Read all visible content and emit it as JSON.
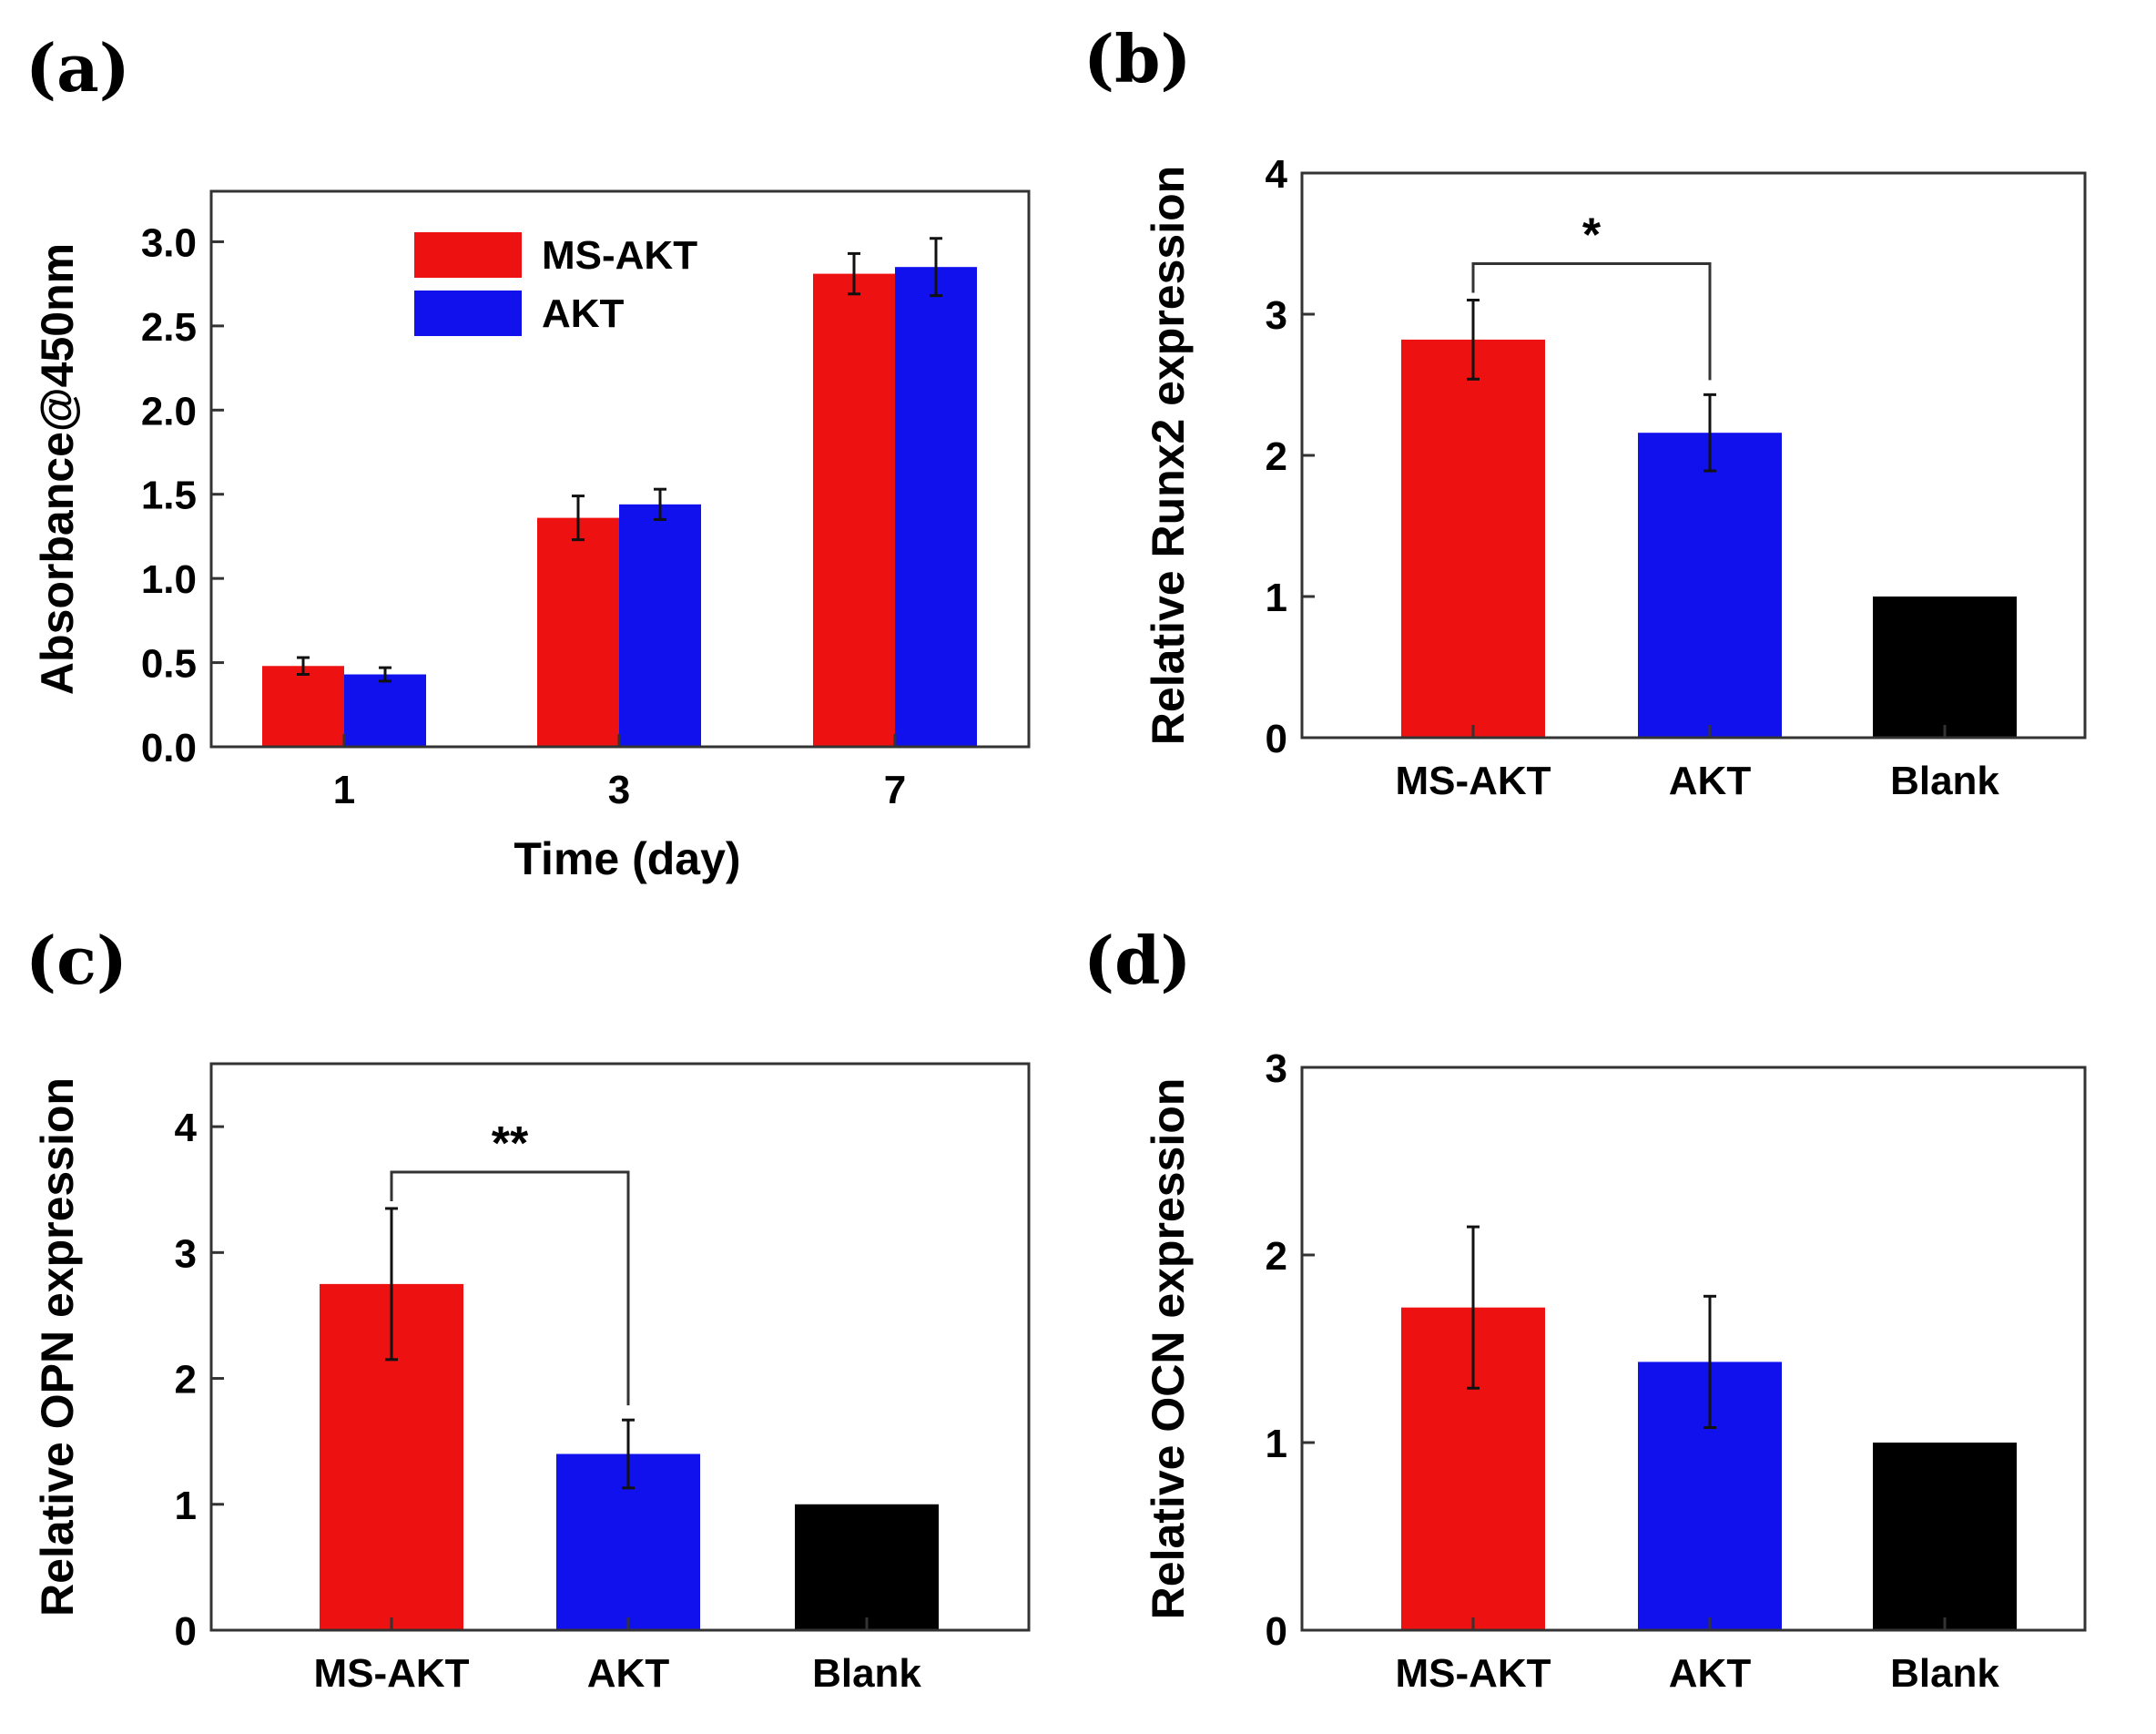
{
  "chart_data": [
    {
      "id": "a",
      "panel_label": "(a)",
      "type": "bar",
      "ylabel": "Absorbance@450nm",
      "xlabel": "Time (day)",
      "ylim": [
        0,
        3.3
      ],
      "yticks": [
        "0.0",
        "0.5",
        "1.0",
        "1.5",
        "2.0",
        "2.5",
        "3.0"
      ],
      "categories": [
        "1",
        "3",
        "7"
      ],
      "series": [
        {
          "name": "MS-AKT",
          "color": "#ee1111",
          "values": [
            0.48,
            1.36,
            2.81
          ],
          "errors": [
            0.05,
            0.13,
            0.12
          ]
        },
        {
          "name": "AKT",
          "color": "#1111ee",
          "values": [
            0.43,
            1.44,
            2.85
          ],
          "errors": [
            0.04,
            0.09,
            0.17
          ]
        }
      ],
      "legend": "top-center",
      "significance": []
    },
    {
      "id": "b",
      "panel_label": "(b)",
      "type": "bar",
      "ylabel": "Relative Runx2 expression",
      "xlabel": "",
      "ylim": [
        0,
        4
      ],
      "yticks": [
        "0",
        "1",
        "2",
        "3",
        "4"
      ],
      "categories": [
        "MS-AKT",
        "AKT",
        "Blank"
      ],
      "colors": [
        "#ee1111",
        "#1111ee",
        "#000000"
      ],
      "values": [
        2.82,
        2.16,
        1.0
      ],
      "errors": [
        0.28,
        0.27,
        0
      ],
      "significance": [
        {
          "from": 0,
          "to": 1,
          "label": "*"
        }
      ]
    },
    {
      "id": "c",
      "panel_label": "(c)",
      "type": "bar",
      "ylabel": "Relative OPN expression",
      "xlabel": "",
      "ylim": [
        0,
        4.5
      ],
      "yticks": [
        "0",
        "1",
        "2",
        "3",
        "4"
      ],
      "categories": [
        "MS-AKT",
        "AKT",
        "Blank"
      ],
      "colors": [
        "#ee1111",
        "#1111ee",
        "#000000"
      ],
      "values": [
        2.75,
        1.4,
        1.0
      ],
      "errors": [
        0.6,
        0.27,
        0
      ],
      "significance": [
        {
          "from": 0,
          "to": 1,
          "label": "**"
        }
      ]
    },
    {
      "id": "d",
      "panel_label": "(d)",
      "type": "bar",
      "ylabel": "Relative OCN expression",
      "xlabel": "",
      "ylim": [
        0,
        3
      ],
      "yticks": [
        "0",
        "1",
        "2",
        "3"
      ],
      "categories": [
        "MS-AKT",
        "AKT",
        "Blank"
      ],
      "colors": [
        "#ee1111",
        "#1111ee",
        "#000000"
      ],
      "values": [
        1.72,
        1.43,
        1.0
      ],
      "errors": [
        0.43,
        0.35,
        0
      ],
      "significance": []
    }
  ]
}
